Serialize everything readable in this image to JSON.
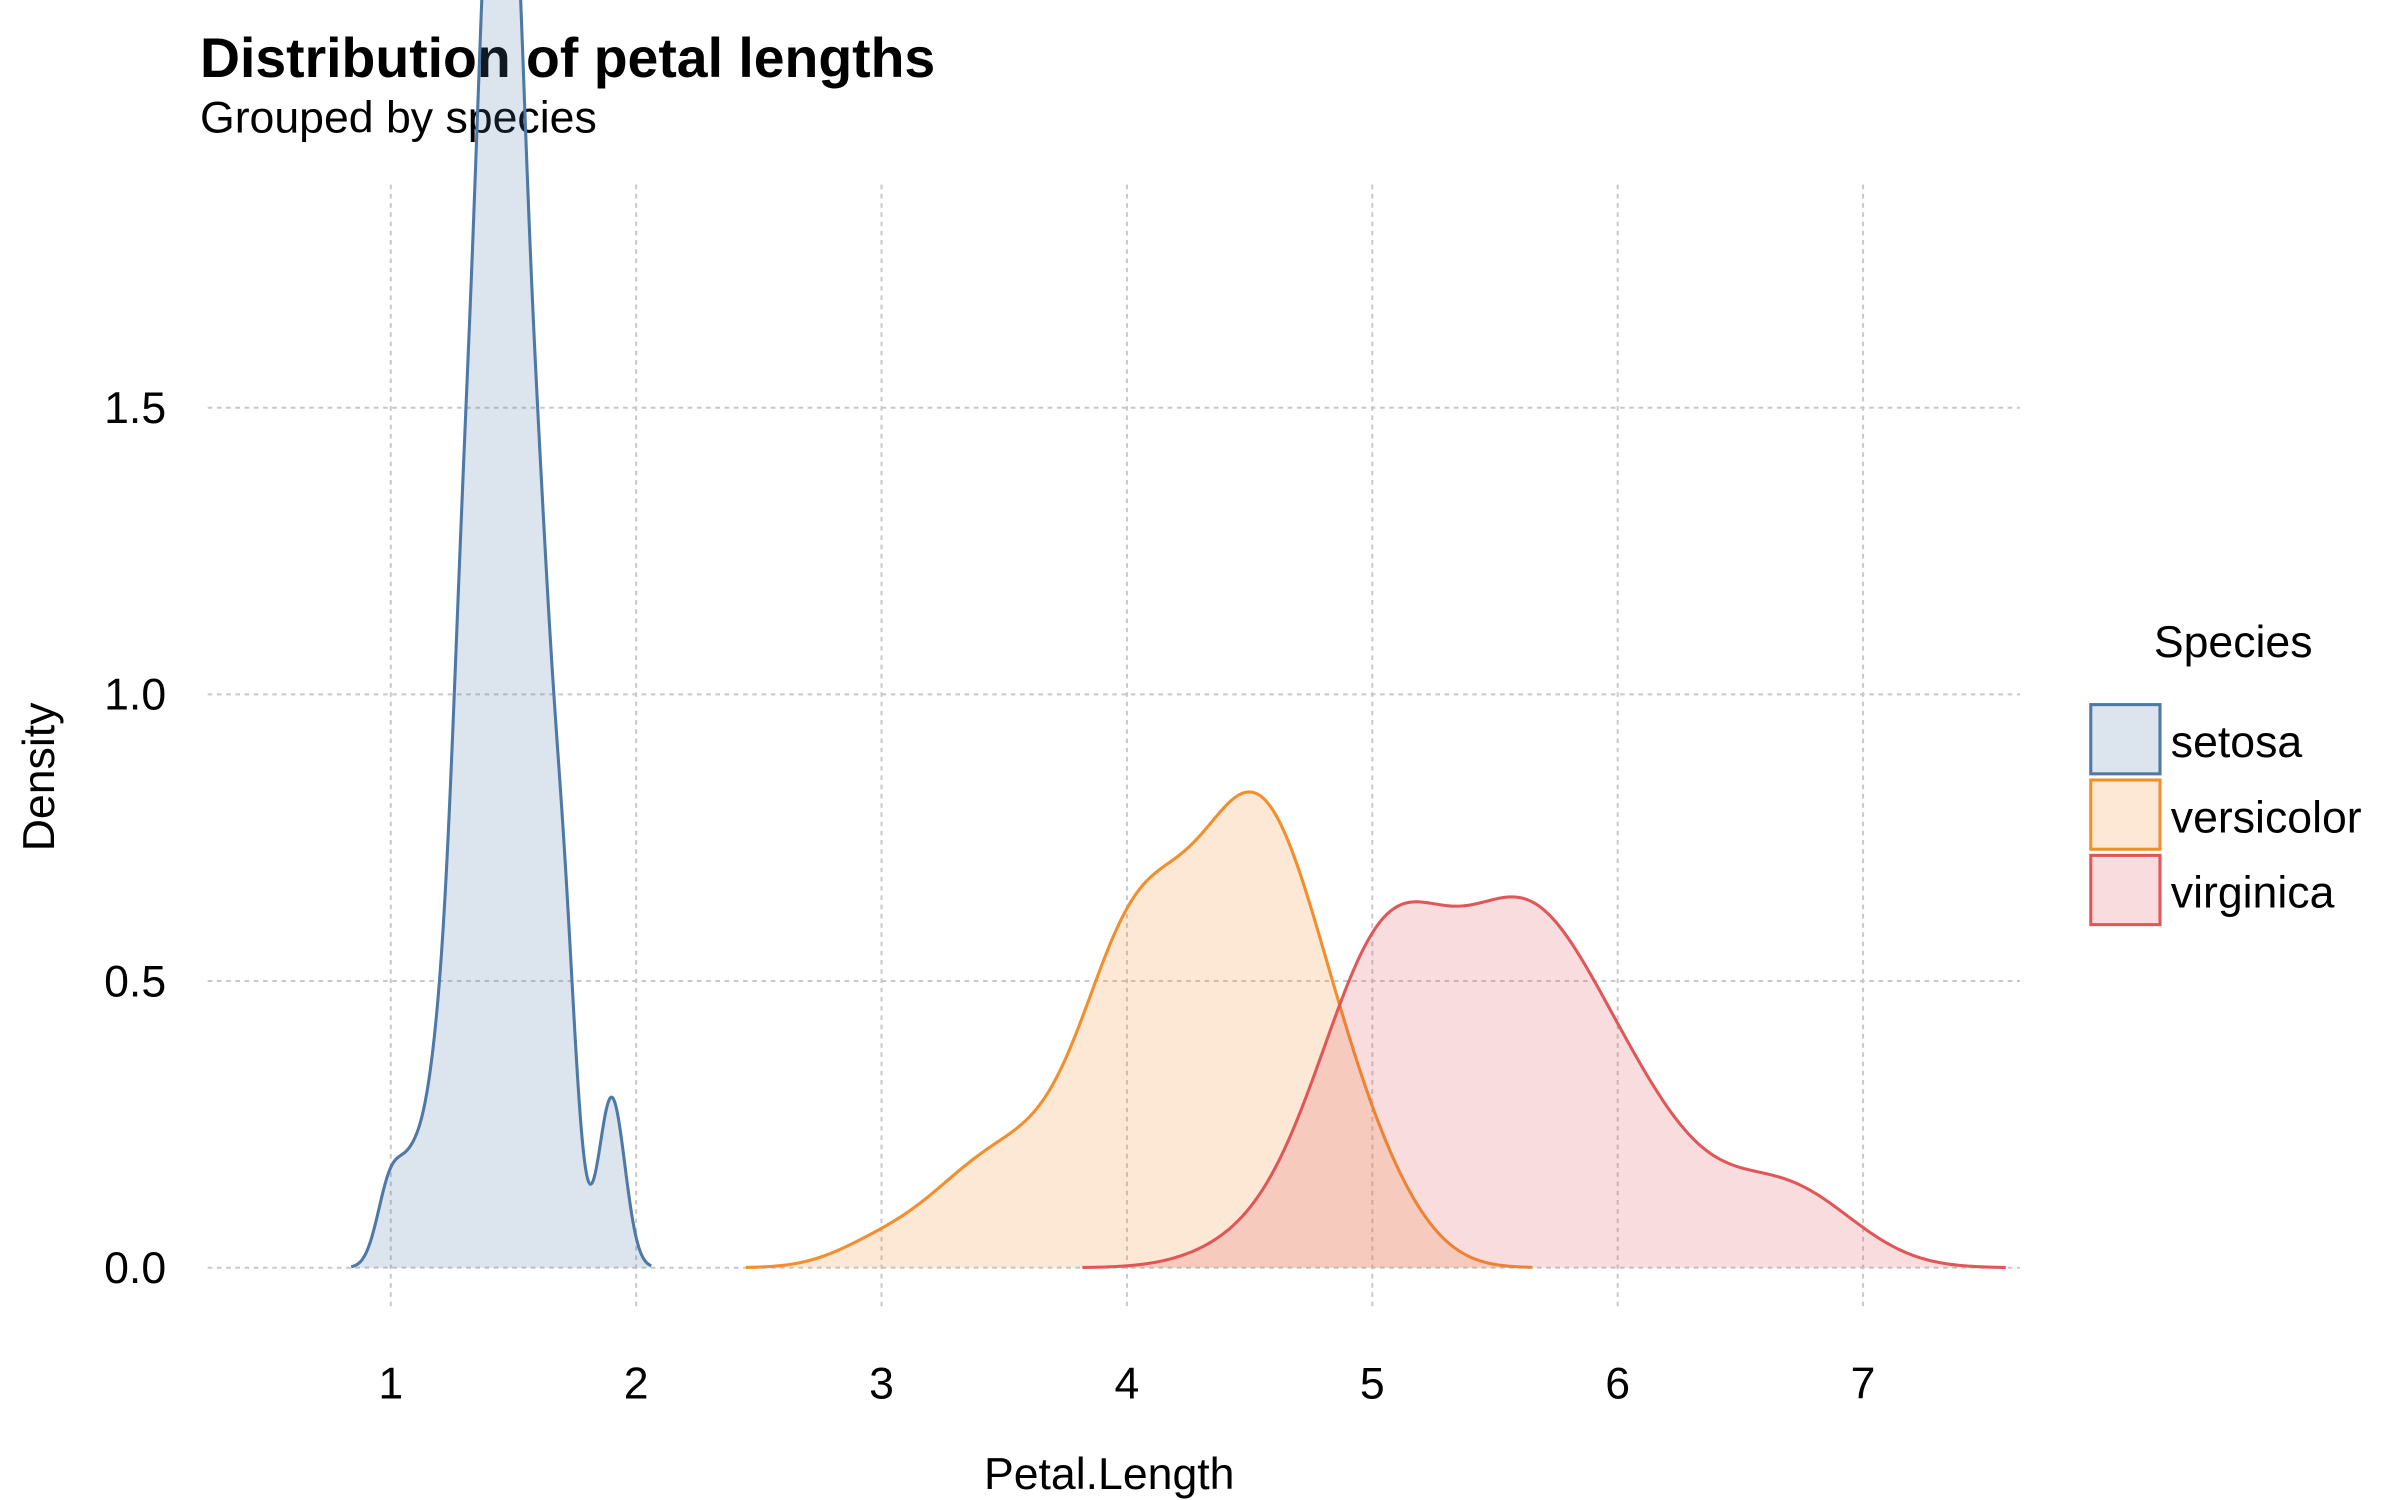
{
  "chart_data": {
    "type": "area",
    "subtype": "density",
    "title": "Distribution of petal lengths",
    "subtitle": "Grouped by species",
    "xlabel": "Petal.Length",
    "ylabel": "Density",
    "xlim": [
      0.5,
      7.5
    ],
    "ylim": [
      0,
      1.85
    ],
    "x_ticks": [
      "1",
      "2",
      "3",
      "4",
      "5",
      "6",
      "7"
    ],
    "y_ticks": [
      "0.0",
      "0.5",
      "1.0",
      "1.5"
    ],
    "grid": true,
    "legend": {
      "title": "Species",
      "position": "right"
    },
    "fill_alpha": 0.2,
    "series": [
      {
        "name": "setosa",
        "color": "#4E79A7",
        "observations": [
          1.4,
          1.4,
          1.3,
          1.5,
          1.4,
          1.7,
          1.4,
          1.5,
          1.4,
          1.5,
          1.5,
          1.6,
          1.4,
          1.1,
          1.2,
          1.5,
          1.3,
          1.4,
          1.7,
          1.5,
          1.7,
          1.5,
          1.0,
          1.7,
          1.9,
          1.6,
          1.6,
          1.5,
          1.4,
          1.6,
          1.6,
          1.5,
          1.5,
          1.4,
          1.5,
          1.2,
          1.3,
          1.4,
          1.3,
          1.5,
          1.3,
          1.3,
          1.3,
          1.6,
          1.9,
          1.4,
          1.6,
          1.4,
          1.5,
          1.4
        ]
      },
      {
        "name": "versicolor",
        "color": "#F28E2B",
        "observations": [
          4.7,
          4.5,
          4.9,
          4.0,
          4.6,
          4.5,
          4.7,
          3.3,
          4.6,
          3.9,
          3.5,
          4.2,
          4.0,
          4.7,
          3.6,
          4.4,
          4.5,
          4.1,
          4.5,
          3.9,
          4.8,
          4.0,
          4.9,
          4.7,
          4.3,
          4.4,
          4.8,
          5.0,
          4.5,
          3.5,
          3.8,
          3.7,
          3.9,
          5.1,
          4.5,
          4.5,
          4.7,
          4.4,
          4.1,
          4.0,
          4.4,
          4.6,
          4.0,
          3.3,
          4.2,
          4.2,
          4.2,
          4.3,
          3.0,
          4.1
        ]
      },
      {
        "name": "virginica",
        "color": "#E15759",
        "observations": [
          6.0,
          5.1,
          5.9,
          5.6,
          5.8,
          6.6,
          4.5,
          6.3,
          5.8,
          6.1,
          5.1,
          5.3,
          5.5,
          5.0,
          5.1,
          5.3,
          5.5,
          6.7,
          6.9,
          5.0,
          5.7,
          4.9,
          6.7,
          4.9,
          5.7,
          6.0,
          4.8,
          4.9,
          5.6,
          5.8,
          6.1,
          6.4,
          5.6,
          5.1,
          5.6,
          6.1,
          5.6,
          5.5,
          4.8,
          5.4,
          5.6,
          5.1,
          5.1,
          5.9,
          5.7,
          5.2,
          5.0,
          5.2,
          5.4,
          5.1
        ]
      }
    ]
  }
}
